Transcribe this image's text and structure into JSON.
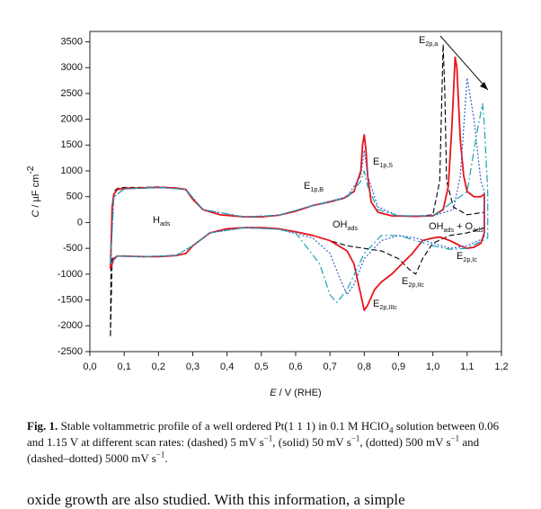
{
  "chart_data": {
    "type": "line",
    "xlabel": [
      {
        "text": "E",
        "italic": true
      },
      {
        "text": " / V (RHE)"
      }
    ],
    "ylabel": [
      {
        "text": "C",
        "italic": true
      },
      {
        "text": " / µF cm"
      },
      {
        "text": "-2",
        "sup": true
      }
    ],
    "xlim": [
      0,
      1.2
    ],
    "xticks": [
      {
        "value": 0,
        "label": "0,0"
      },
      {
        "value": 0.1,
        "label": "0,1"
      },
      {
        "value": 0.2,
        "label": "0,2"
      },
      {
        "value": 0.3,
        "label": "0,3"
      },
      {
        "value": 0.4,
        "label": "0,4"
      },
      {
        "value": 0.5,
        "label": "0,5"
      },
      {
        "value": 0.6,
        "label": "0,6"
      },
      {
        "value": 0.7,
        "label": "0,7"
      },
      {
        "value": 0.8,
        "label": "0,8"
      },
      {
        "value": 0.9,
        "label": "0,9"
      },
      {
        "value": 1.0,
        "label": "1,0"
      },
      {
        "value": 1.1,
        "label": "1,1"
      },
      {
        "value": 1.2,
        "label": "1,2"
      }
    ],
    "ylim": [
      -2500,
      3700
    ],
    "yticks": [
      -2500,
      -2000,
      -1500,
      -1000,
      -500,
      0,
      500,
      1000,
      1500,
      2000,
      2500,
      3000,
      3500
    ],
    "series": [
      {
        "color": "#000000",
        "style": "dashed",
        "x": [
          0.06,
          0.062,
          0.065,
          0.07,
          0.08,
          0.1,
          0.15,
          0.2,
          0.25,
          0.28,
          0.3,
          0.33,
          0.38,
          0.45,
          0.5,
          0.55,
          0.6,
          0.65,
          0.7,
          0.74,
          0.77,
          0.79,
          0.795,
          0.8,
          0.805,
          0.81,
          0.82,
          0.84,
          0.88,
          0.95,
          1.0,
          1.02,
          1.03,
          1.035,
          1.04,
          1.06,
          1.1,
          1.15,
          1.15,
          1.1,
          1.05,
          1.0,
          0.97,
          0.95,
          0.93,
          0.9,
          0.85,
          0.8,
          0.75,
          0.7,
          0.65,
          0.6,
          0.55,
          0.5,
          0.45,
          0.4,
          0.35,
          0.3,
          0.28,
          0.25,
          0.2,
          0.15,
          0.1,
          0.08,
          0.065,
          0.06
        ],
        "values": [
          -2200,
          -500,
          300,
          600,
          660,
          680,
          680,
          690,
          670,
          640,
          450,
          250,
          150,
          110,
          110,
          140,
          220,
          330,
          400,
          470,
          600,
          1000,
          1500,
          1650,
          1400,
          900,
          400,
          200,
          130,
          120,
          150,
          800,
          3450,
          2500,
          800,
          300,
          150,
          200,
          -100,
          -200,
          -250,
          -400,
          -700,
          -1000,
          -900,
          -700,
          -550,
          -500,
          -450,
          -350,
          -250,
          -180,
          -120,
          -100,
          -100,
          -120,
          -200,
          -450,
          -600,
          -640,
          -660,
          -660,
          -650,
          -650,
          -700,
          -2200
        ]
      },
      {
        "color": "#e8141c",
        "style": "solid",
        "x": [
          0.06,
          0.065,
          0.07,
          0.08,
          0.1,
          0.15,
          0.2,
          0.25,
          0.28,
          0.3,
          0.33,
          0.38,
          0.45,
          0.5,
          0.55,
          0.6,
          0.65,
          0.7,
          0.74,
          0.77,
          0.79,
          0.795,
          0.8,
          0.805,
          0.81,
          0.82,
          0.84,
          0.88,
          0.95,
          1.0,
          1.03,
          1.045,
          1.055,
          1.065,
          1.07,
          1.08,
          1.09,
          1.1,
          1.12,
          1.14,
          1.15,
          1.15,
          1.14,
          1.12,
          1.1,
          1.08,
          1.05,
          1.02,
          1.0,
          0.97,
          0.94,
          0.91,
          0.88,
          0.85,
          0.83,
          0.81,
          0.8,
          0.79,
          0.77,
          0.75,
          0.7,
          0.65,
          0.6,
          0.55,
          0.5,
          0.45,
          0.4,
          0.35,
          0.3,
          0.28,
          0.25,
          0.2,
          0.15,
          0.1,
          0.08,
          0.07,
          0.06
        ],
        "values": [
          -900,
          300,
          550,
          640,
          660,
          670,
          680,
          670,
          640,
          450,
          250,
          150,
          110,
          110,
          140,
          220,
          330,
          400,
          470,
          600,
          1000,
          1500,
          1700,
          1400,
          900,
          400,
          200,
          130,
          120,
          130,
          250,
          700,
          1800,
          3200,
          3000,
          1600,
          900,
          600,
          500,
          500,
          550,
          -200,
          -400,
          -480,
          -500,
          -450,
          -350,
          -280,
          -300,
          -350,
          -600,
          -800,
          -1000,
          -1150,
          -1300,
          -1600,
          -1700,
          -1400,
          -800,
          -550,
          -350,
          -250,
          -180,
          -120,
          -100,
          -100,
          -120,
          -200,
          -450,
          -600,
          -640,
          -660,
          -660,
          -650,
          -650,
          -700,
          -900
        ]
      },
      {
        "color": "#3a5fcd",
        "style": "dotted",
        "x": [
          0.06,
          0.07,
          0.1,
          0.2,
          0.28,
          0.33,
          0.45,
          0.55,
          0.65,
          0.75,
          0.79,
          0.8,
          0.81,
          0.84,
          0.9,
          1.0,
          1.06,
          1.08,
          1.1,
          1.12,
          1.14,
          1.15,
          1.15,
          1.1,
          1.05,
          1.0,
          0.95,
          0.9,
          0.85,
          0.8,
          0.77,
          0.75,
          0.73,
          0.7,
          0.65,
          0.55,
          0.45,
          0.35,
          0.3,
          0.25,
          0.15,
          0.08,
          0.06
        ],
        "values": [
          -800,
          500,
          650,
          680,
          640,
          250,
          110,
          140,
          330,
          500,
          900,
          1400,
          900,
          300,
          130,
          130,
          250,
          900,
          2800,
          2000,
          800,
          600,
          -300,
          -450,
          -500,
          -400,
          -300,
          -250,
          -350,
          -700,
          -1200,
          -1400,
          -1100,
          -600,
          -300,
          -130,
          -100,
          -200,
          -450,
          -640,
          -660,
          -650,
          -800
        ]
      },
      {
        "color": "#17a2b0",
        "style": "dashdot",
        "x": [
          0.06,
          0.07,
          0.1,
          0.2,
          0.28,
          0.33,
          0.45,
          0.55,
          0.65,
          0.75,
          0.79,
          0.8,
          0.81,
          0.84,
          0.9,
          1.0,
          1.1,
          1.13,
          1.145,
          1.15,
          1.16,
          1.16,
          1.1,
          1.05,
          1.0,
          0.95,
          0.9,
          0.85,
          0.8,
          0.75,
          0.72,
          0.7,
          0.67,
          0.6,
          0.55,
          0.45,
          0.35,
          0.3,
          0.25,
          0.15,
          0.08,
          0.06
        ],
        "values": [
          -800,
          500,
          650,
          680,
          640,
          250,
          110,
          140,
          330,
          480,
          800,
          1000,
          700,
          250,
          130,
          130,
          600,
          1800,
          2300,
          1900,
          600,
          -300,
          -500,
          -520,
          -450,
          -350,
          -250,
          -250,
          -600,
          -1300,
          -1550,
          -1400,
          -800,
          -200,
          -130,
          -100,
          -200,
          -450,
          -640,
          -660,
          -650,
          -800
        ]
      }
    ],
    "annotations": [
      {
        "runs": [
          {
            "text": "E"
          },
          {
            "text": "2p,a",
            "sub": true
          }
        ]
      },
      {
        "runs": [
          {
            "text": "E"
          },
          {
            "text": "1p,S",
            "sub": true
          }
        ]
      },
      {
        "runs": [
          {
            "text": "E"
          },
          {
            "text": "1p,B",
            "sub": true
          }
        ]
      },
      {
        "runs": [
          {
            "text": "H"
          },
          {
            "text": "ads",
            "sub": true
          }
        ]
      },
      {
        "runs": [
          {
            "text": "OH"
          },
          {
            "text": "ads",
            "sub": true
          }
        ]
      },
      {
        "runs": [
          {
            "text": "OH"
          },
          {
            "text": "ads",
            "sub": true
          },
          {
            "text": " + O"
          },
          {
            "text": "ads",
            "sub": true
          }
        ]
      },
      {
        "runs": [
          {
            "text": "E"
          },
          {
            "text": "2p,Ic",
            "sub": true
          }
        ]
      },
      {
        "runs": [
          {
            "text": "E"
          },
          {
            "text": "2p,IIc",
            "sub": true
          }
        ]
      },
      {
        "runs": [
          {
            "text": "E"
          },
          {
            "text": "2p,IIIc",
            "sub": true
          }
        ]
      }
    ]
  },
  "caption": {
    "label": "Fig. 1.",
    "runs": [
      {
        "text": " Stable voltammetric profile of a well ordered Pt(1 1 1) in 0.1 M HClO"
      },
      {
        "text": "4",
        "sub": true
      },
      {
        "text": " solution between 0.06 and 1.15 V at different scan rates: (dashed) 5 mV s"
      },
      {
        "text": "−1",
        "sup": true
      },
      {
        "text": ", (solid) 50 mV s"
      },
      {
        "text": "−1",
        "sup": true
      },
      {
        "text": ", (dotted) 500 mV s"
      },
      {
        "text": "−1",
        "sup": true
      },
      {
        "text": " and (dashed–dotted) 5000 mV s"
      },
      {
        "text": "−1",
        "sup": true
      },
      {
        "text": "."
      }
    ]
  },
  "body_text": "oxide growth are also studied. With this information, a simple"
}
